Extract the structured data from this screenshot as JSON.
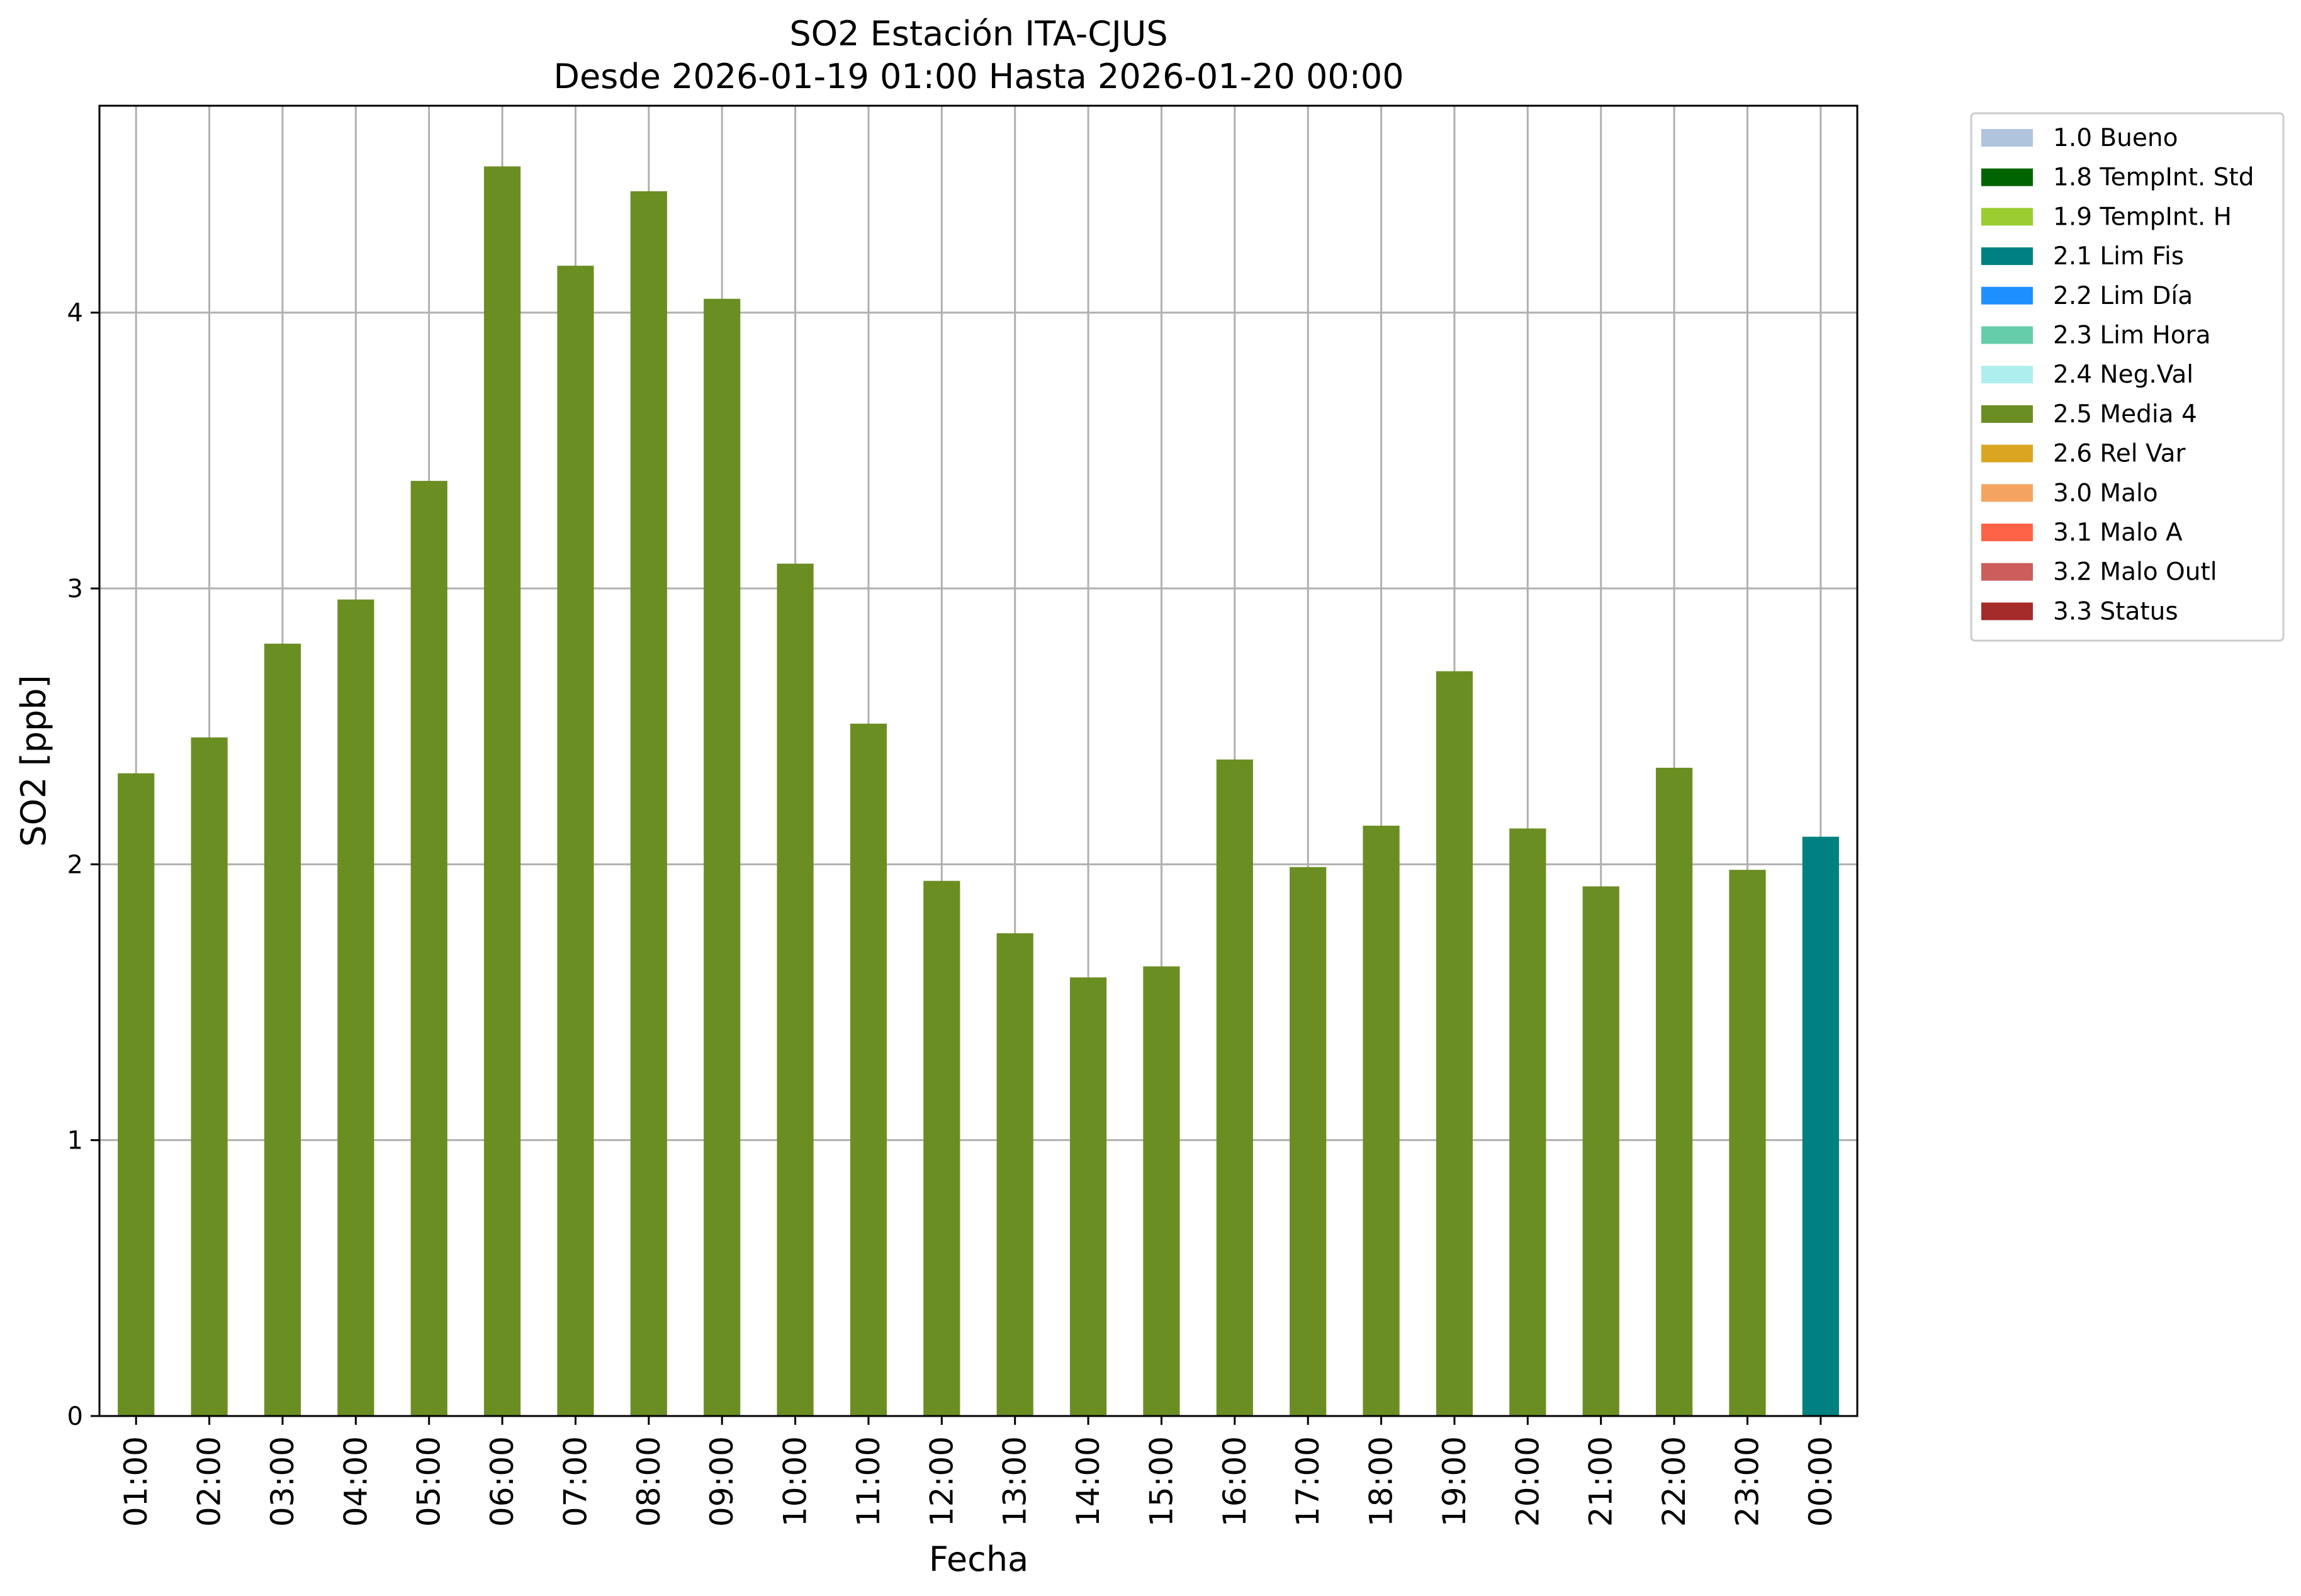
{
  "chart_data": {
    "type": "bar",
    "title": [
      "SO2 Estación ITA-CJUS",
      "Desde 2026-01-19 01:00 Hasta 2026-01-20 00:00"
    ],
    "xlabel": "Fecha",
    "ylabel": "SO2 [ppb]",
    "ylim": [
      0,
      4.75
    ],
    "yticks": [
      0,
      1,
      2,
      3,
      4
    ],
    "grid": true,
    "legend_position": "outside-top-right",
    "categories": [
      "01:00",
      "02:00",
      "03:00",
      "04:00",
      "05:00",
      "06:00",
      "07:00",
      "08:00",
      "09:00",
      "10:00",
      "11:00",
      "12:00",
      "13:00",
      "14:00",
      "15:00",
      "16:00",
      "17:00",
      "18:00",
      "19:00",
      "20:00",
      "21:00",
      "22:00",
      "23:00",
      "00:00"
    ],
    "values": [
      2.33,
      2.46,
      2.8,
      2.96,
      3.39,
      4.53,
      4.17,
      4.44,
      4.05,
      3.09,
      2.51,
      1.94,
      1.75,
      1.59,
      1.63,
      2.38,
      1.99,
      2.14,
      2.7,
      2.13,
      1.92,
      2.35,
      1.98,
      2.1
    ],
    "flags": [
      "2.5",
      "2.5",
      "2.5",
      "2.5",
      "2.5",
      "2.5",
      "2.5",
      "2.5",
      "2.5",
      "2.5",
      "2.5",
      "2.5",
      "2.5",
      "2.5",
      "2.5",
      "2.5",
      "2.5",
      "2.5",
      "2.5",
      "2.5",
      "2.5",
      "2.5",
      "2.5",
      "2.1"
    ],
    "legend": [
      {
        "code": "1.0",
        "label": "1.0 Bueno",
        "color": "#b0c4de"
      },
      {
        "code": "1.8",
        "label": "1.8 TempInt. Std",
        "color": "#006400"
      },
      {
        "code": "1.9",
        "label": "1.9 TempInt. H",
        "color": "#9acd32"
      },
      {
        "code": "2.1",
        "label": "2.1 Lim Fis",
        "color": "#008080"
      },
      {
        "code": "2.2",
        "label": "2.2 Lim Día",
        "color": "#1e90ff"
      },
      {
        "code": "2.3",
        "label": "2.3 Lim Hora",
        "color": "#66cdaa"
      },
      {
        "code": "2.4",
        "label": "2.4 Neg.Val",
        "color": "#afeeee"
      },
      {
        "code": "2.5",
        "label": "2.5 Media 4",
        "color": "#6b8e23"
      },
      {
        "code": "2.6",
        "label": "2.6 Rel Var",
        "color": "#daa520"
      },
      {
        "code": "3.0",
        "label": "3.0 Malo",
        "color": "#f4a460"
      },
      {
        "code": "3.1",
        "label": "3.1 Malo A",
        "color": "#ff6347"
      },
      {
        "code": "3.2",
        "label": "3.2 Malo Outl",
        "color": "#cd5c5c"
      },
      {
        "code": "3.3",
        "label": "3.3 Status",
        "color": "#a52a2a"
      }
    ]
  }
}
